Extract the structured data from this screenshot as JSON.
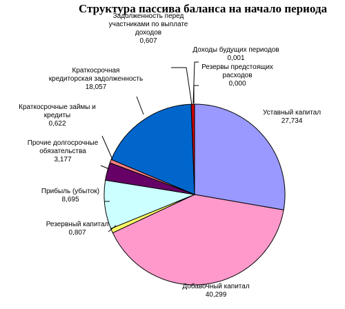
{
  "chart_data": {
    "type": "pie",
    "title": "Структура пассива баланса на начало периода",
    "slices": [
      {
        "name": [
          "Уставный капитал"
        ],
        "value": "27,734",
        "v": 27.734,
        "color": "#9999ff"
      },
      {
        "name": [
          "Добавочный капитал"
        ],
        "value": "40,299",
        "v": 40.299,
        "color": "#ff99cc"
      },
      {
        "name": [
          "Резервный капитал"
        ],
        "value": "0,807",
        "v": 0.807,
        "color": "#ffff66"
      },
      {
        "name": [
          "Прибыль (убыток)"
        ],
        "value": "8,695",
        "v": 8.695,
        "color": "#ccffff"
      },
      {
        "name": [
          "Прочие долгосрочные",
          "обязательства"
        ],
        "value": "3,177",
        "v": 3.177,
        "color": "#660066"
      },
      {
        "name": [
          "Краткосрочные займы и",
          "кредиты"
        ],
        "value": "0,622",
        "v": 0.622,
        "color": "#ff8080"
      },
      {
        "name": [
          "Краткосрочная",
          "кредиторская задолженность"
        ],
        "value": "18,057",
        "v": 18.057,
        "color": "#0066cc"
      },
      {
        "name": [
          "Задолженность перед",
          "участниками по выплате",
          "доходов"
        ],
        "value": "0,607",
        "v": 0.607,
        "color": "#cc0000"
      },
      {
        "name": [
          "Доходы будущих периодов"
        ],
        "value": "0,001",
        "v": 0.001,
        "color": "#ffff00"
      },
      {
        "name": [
          "Резервы предстоящих",
          "расходов"
        ],
        "value": "0,000",
        "v": 0.0,
        "color": "#00ffff"
      }
    ]
  }
}
